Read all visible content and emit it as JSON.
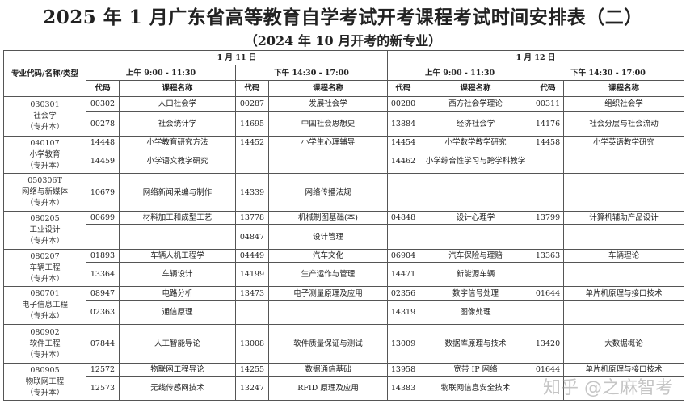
{
  "title": "2025 年 1 月广东省高等教育自学考试开考课程考试时间安排表（二）",
  "subtitle": "（2024 年 10 月开考的新专业）",
  "header": {
    "major_col": "专业代码/名称/类型",
    "days": [
      "1 月 11 日",
      "1 月 12 日"
    ],
    "sessions": [
      "上午  9:00 - 11:30",
      "下午  14:30 - 17:00",
      "上午  9:00 - 11:30",
      "下午  14:30 - 17:00"
    ],
    "code_label": "代码",
    "name_label": "课程名称"
  },
  "majors": [
    {
      "code": "030301",
      "name": "社会学",
      "type": "（专升本）",
      "rows": [
        [
          "00302",
          "人口社会学",
          "00287",
          "发展社会学",
          "00280",
          "西方社会学理论",
          "00311",
          "组织社会学"
        ],
        [
          "00278",
          "社会统计学",
          "14695",
          "中国社会思想史",
          "13884",
          "经济社会学",
          "14176",
          "社会分层与社会流动"
        ]
      ]
    },
    {
      "code": "040107",
      "name": "小学教育",
      "type": "（专升本）",
      "rows": [
        [
          "14448",
          "小学教育研究方法",
          "14452",
          "小学生心理辅导",
          "14454",
          "小学数学教学研究",
          "14458",
          "小学英语教学研究"
        ],
        [
          "14459",
          "小学语文教学研究",
          "",
          "",
          "14462",
          "小学综合性学习与跨学科教学",
          "",
          ""
        ]
      ]
    },
    {
      "code": "050306T",
      "name": "网络与新媒体",
      "type": "（专升本）",
      "rows": [
        [
          "10679",
          "网络新闻采编与制作",
          "14339",
          "网络传播法规",
          "",
          "",
          "",
          ""
        ]
      ]
    },
    {
      "code": "080205",
      "name": "工业设计",
      "type": "（专升本）",
      "rows": [
        [
          "00699",
          "材料加工和成型工艺",
          "13778",
          "机械制图基础(本)",
          "04848",
          "设计心理学",
          "13799",
          "计算机辅助产品设计"
        ],
        [
          "",
          "",
          "04847",
          "设计管理",
          "",
          "",
          "",
          ""
        ]
      ]
    },
    {
      "code": "080207",
      "name": "车辆工程",
      "type": "（专升本）",
      "rows": [
        [
          "01893",
          "车辆人机工程学",
          "04449",
          "汽车文化",
          "06904",
          "汽车保险与理赔",
          "13363",
          "车辆理论"
        ],
        [
          "13364",
          "车辆设计",
          "14199",
          "生产运作与管理",
          "14471",
          "新能源车辆",
          "",
          ""
        ]
      ]
    },
    {
      "code": "080701",
      "name": "电子信息工程",
      "type": "（专升本）",
      "rows": [
        [
          "08947",
          "电路分析",
          "13473",
          "电子测量原理及应用",
          "02356",
          "数字信号处理",
          "01644",
          "单片机原理与接口技术"
        ],
        [
          "02363",
          "通信原理",
          "",
          "",
          "14319",
          "图像处理",
          "",
          ""
        ]
      ]
    },
    {
      "code": "080902",
      "name": "软件工程",
      "type": "（专升本）",
      "rows": [
        [
          "07844",
          "人工智能导论",
          "13008",
          "软件质量保证与测试",
          "13009",
          "数据库原理与技术",
          "13420",
          "大数据概论"
        ]
      ]
    },
    {
      "code": "080905",
      "name": "物联网工程",
      "type": "（专升本）",
      "rows": [
        [
          "12572",
          "物联网工程导论",
          "14255",
          "数据通信基础",
          "13958",
          "宽带 IP 网络",
          "01644",
          "单片机原理与接口技术"
        ],
        [
          "12573",
          "无线传感网技术",
          "13247",
          "RFID 原理及应用",
          "14383",
          "物联网信息安全技术",
          "",
          ""
        ]
      ]
    }
  ],
  "watermark": "知乎 @之麻智考"
}
